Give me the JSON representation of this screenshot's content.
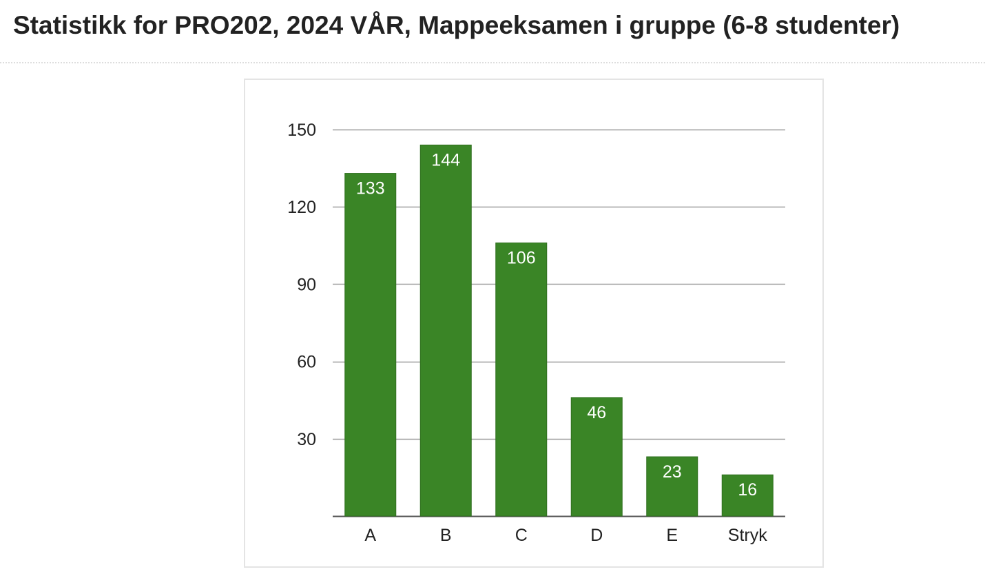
{
  "page": {
    "title": "Statistikk for PRO202, 2024 VÅR, Mappeeksamen i gruppe (6-8 studenter)"
  },
  "chart_data": {
    "type": "bar",
    "categories": [
      "A",
      "B",
      "C",
      "D",
      "E",
      "Stryk"
    ],
    "values": [
      133,
      144,
      106,
      46,
      23,
      16
    ],
    "yticks": [
      30,
      60,
      90,
      120,
      150
    ],
    "ylim": [
      0,
      150
    ],
    "grid": true,
    "data_labels": true,
    "bar_color": "#3a8526",
    "grid_color": "#9e9e9e"
  }
}
